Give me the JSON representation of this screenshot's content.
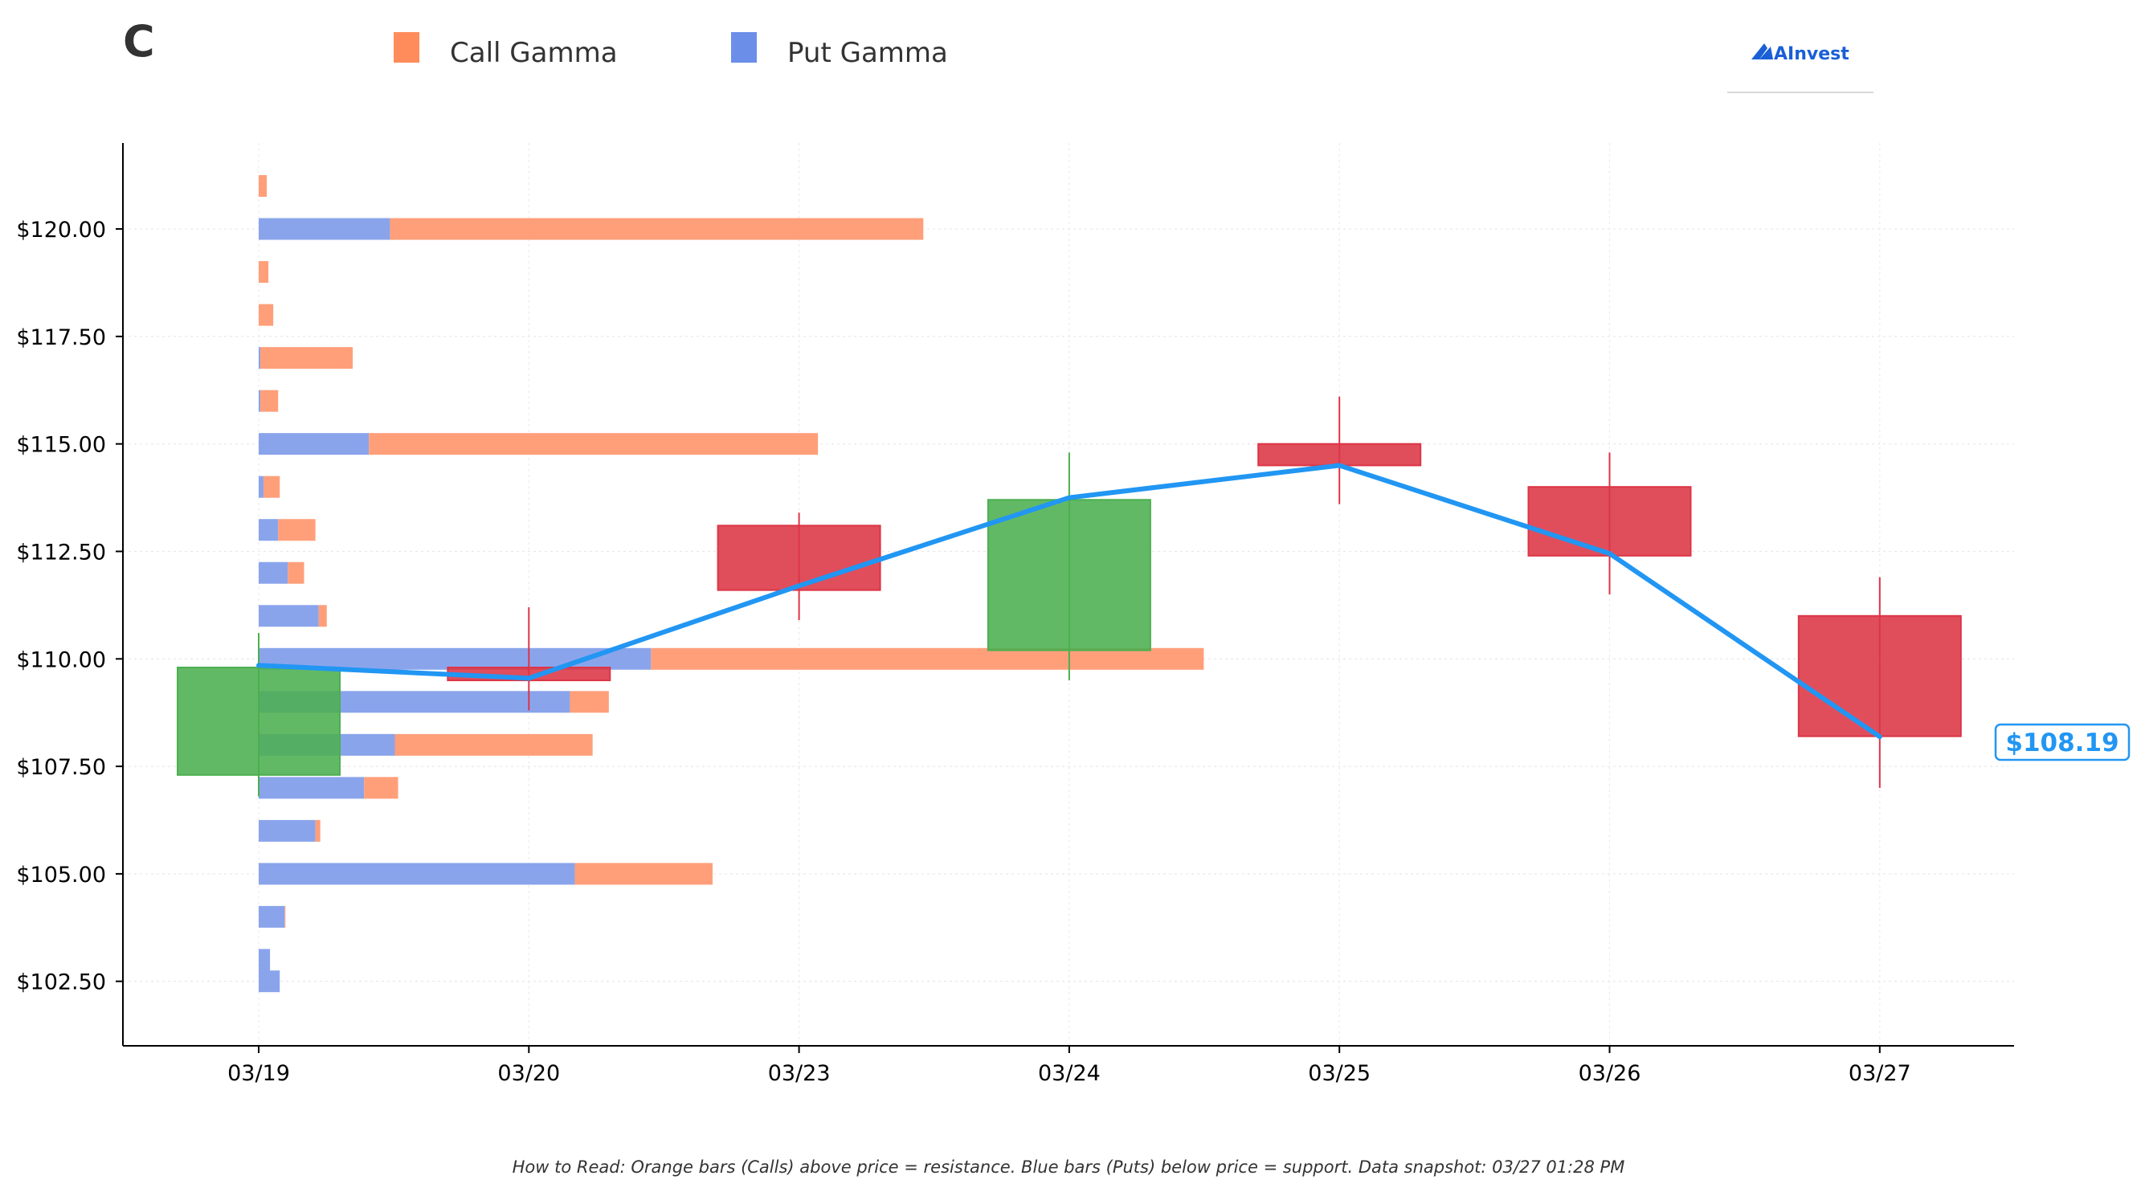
{
  "ticker": "C",
  "logo": {
    "text": "AInvest",
    "icon": "ainvest-logo-icon"
  },
  "legend": [
    {
      "label": "Call Gamma",
      "color": "#ff8c5a"
    },
    {
      "label": "Put Gamma",
      "color": "#6b8ee8"
    }
  ],
  "footnote": "How to Read: Orange bars (Calls) above price = resistance. Blue bars (Puts) below price = support. Data snapshot: 03/27 01:28 PM",
  "current_price_label": "$108.19",
  "chart_data": {
    "type": "candlestick-with-gamma",
    "title": "",
    "xlabel": "",
    "ylabel": "",
    "x_categories": [
      "03/19",
      "03/20",
      "03/23",
      "03/24",
      "03/25",
      "03/26",
      "03/27"
    ],
    "y_ticks": [
      102.5,
      105.0,
      107.5,
      110.0,
      112.5,
      115.0,
      117.5,
      120.0
    ],
    "y_tick_labels": [
      "$102.50",
      "$105.00",
      "$107.50",
      "$110.00",
      "$112.50",
      "$115.00",
      "$117.50",
      "$120.00"
    ],
    "ylim": [
      101.0,
      122.0
    ],
    "grid": true,
    "colors": {
      "up": "#4caf50",
      "down": "#dc3545",
      "close_line": "#2196f3",
      "call": "#ff9f7a",
      "put": "#8aa4ec"
    },
    "candles": [
      {
        "date": "03/19",
        "open": 107.3,
        "close": 109.8,
        "high": 110.6,
        "low": 106.8
      },
      {
        "date": "03/20",
        "open": 109.8,
        "close": 109.5,
        "high": 111.2,
        "low": 108.8
      },
      {
        "date": "03/23",
        "open": 113.1,
        "close": 111.6,
        "high": 113.4,
        "low": 110.9
      },
      {
        "date": "03/24",
        "open": 110.2,
        "close": 113.7,
        "high": 114.8,
        "low": 109.5
      },
      {
        "date": "03/25",
        "open": 115.0,
        "close": 114.5,
        "high": 116.1,
        "low": 113.6
      },
      {
        "date": "03/26",
        "open": 114.0,
        "close": 112.4,
        "high": 114.8,
        "low": 111.5
      },
      {
        "date": "03/27",
        "open": 111.0,
        "close": 108.2,
        "high": 111.9,
        "low": 107.0
      }
    ],
    "close_line": [
      109.85,
      109.55,
      111.7,
      113.75,
      114.5,
      112.45,
      108.19
    ],
    "current_price": 108.19,
    "gamma_units": "fraction of 03/19-to-03/27 axis span",
    "gamma_levels": [
      {
        "strike": 102.5,
        "put": 0.013,
        "call": 0.0
      },
      {
        "strike": 103.0,
        "put": 0.007,
        "call": 0.0
      },
      {
        "strike": 104.0,
        "put": 0.016,
        "call": 0.0005
      },
      {
        "strike": 105.0,
        "put": 0.195,
        "call": 0.085
      },
      {
        "strike": 106.0,
        "put": 0.035,
        "call": 0.003
      },
      {
        "strike": 107.0,
        "put": 0.065,
        "call": 0.021
      },
      {
        "strike": 108.0,
        "put": 0.084,
        "call": 0.122
      },
      {
        "strike": 109.0,
        "put": 0.192,
        "call": 0.024
      },
      {
        "strike": 110.0,
        "put": 0.242,
        "call": 0.341
      },
      {
        "strike": 111.0,
        "put": 0.037,
        "call": 0.005
      },
      {
        "strike": 112.0,
        "put": 0.018,
        "call": 0.01
      },
      {
        "strike": 113.0,
        "put": 0.012,
        "call": 0.023
      },
      {
        "strike": 114.0,
        "put": 0.003,
        "call": 0.01
      },
      {
        "strike": 115.0,
        "put": 0.068,
        "call": 0.277
      },
      {
        "strike": 116.0,
        "put": 0.001,
        "call": 0.011
      },
      {
        "strike": 117.0,
        "put": 0.001,
        "call": 0.057
      },
      {
        "strike": 118.0,
        "put": 0.0,
        "call": 0.009
      },
      {
        "strike": 119.0,
        "put": 0.0,
        "call": 0.006
      },
      {
        "strike": 120.0,
        "put": 0.081,
        "call": 0.329
      },
      {
        "strike": 121.0,
        "put": 0.0,
        "call": 0.005
      }
    ]
  }
}
